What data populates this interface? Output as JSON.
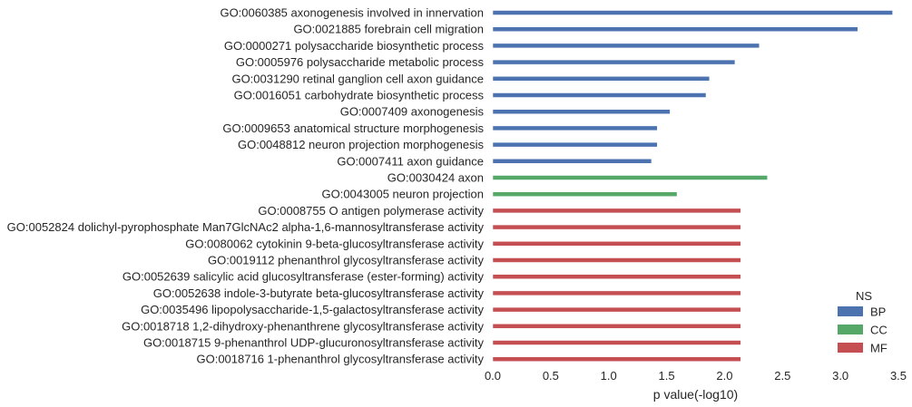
{
  "chart_data": {
    "type": "bar",
    "orientation": "horizontal",
    "xlabel": "p value(-log10)",
    "xlim": [
      0,
      3.5
    ],
    "xticks": [
      "0.0",
      "0.5",
      "1.0",
      "1.5",
      "2.0",
      "2.5",
      "3.0",
      "3.5"
    ],
    "grid": false,
    "legend": {
      "title": "NS",
      "placement": "lower-right",
      "entries": [
        {
          "name": "BP",
          "color": "#4c72b0"
        },
        {
          "name": "CC",
          "color": "#55a868"
        },
        {
          "name": "MF",
          "color": "#c44e52"
        }
      ]
    },
    "categories": [
      "GO:0060385 axonogenesis involved in innervation",
      "GO:0021885 forebrain cell migration",
      "GO:0000271 polysaccharide biosynthetic process",
      "GO:0005976 polysaccharide metabolic process",
      "GO:0031290 retinal ganglion cell axon guidance",
      "GO:0016051 carbohydrate biosynthetic process",
      "GO:0007409 axonogenesis",
      "GO:0009653 anatomical structure morphogenesis",
      "GO:0048812 neuron projection morphogenesis",
      "GO:0007411 axon guidance",
      "GO:0030424 axon",
      "GO:0043005 neuron projection",
      "GO:0008755 O antigen polymerase activity",
      "GO:0052824 dolichyl-pyrophosphate Man7GlcNAc2 alpha-1,6-mannosyltransferase activity",
      "GO:0080062 cytokinin 9-beta-glucosyltransferase activity",
      "GO:0019112 phenanthrol glycosyltransferase activity",
      "GO:0052639 salicylic acid glucosyltransferase (ester-forming) activity",
      "GO:0052638 indole-3-butyrate beta-glucosyltransferase activity",
      "GO:0035496 lipopolysaccharide-1,5-galactosyltransferase activity",
      "GO:0018718 1,2-dihydroxy-phenanthrene glycosyltransferase activity",
      "GO:0018715 9-phenanthrol UDP-glucuronosyltransferase activity",
      "GO:0018716 1-phenanthrol glycosyltransferase activity"
    ],
    "series": [
      {
        "name": "BP",
        "values": [
          3.45,
          3.15,
          2.3,
          2.09,
          1.87,
          1.84,
          1.53,
          1.42,
          1.42,
          1.37,
          null,
          null,
          null,
          null,
          null,
          null,
          null,
          null,
          null,
          null,
          null,
          null
        ]
      },
      {
        "name": "CC",
        "values": [
          null,
          null,
          null,
          null,
          null,
          null,
          null,
          null,
          null,
          null,
          2.37,
          1.59,
          null,
          null,
          null,
          null,
          null,
          null,
          null,
          null,
          null,
          null
        ]
      },
      {
        "name": "MF",
        "values": [
          null,
          null,
          null,
          null,
          null,
          null,
          null,
          null,
          null,
          null,
          null,
          null,
          2.14,
          2.14,
          2.14,
          2.14,
          2.14,
          2.14,
          2.14,
          2.14,
          2.14,
          2.14
        ]
      }
    ]
  }
}
